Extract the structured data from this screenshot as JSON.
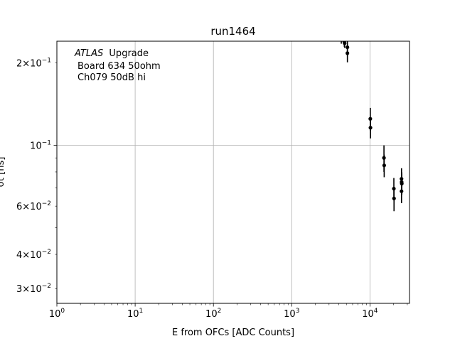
{
  "chart_data": {
    "type": "scatter",
    "title": "run1464",
    "xlabel": "E from OFCs [ADC Counts]",
    "ylabel": "σt [ns]",
    "xscale": "log",
    "yscale": "log",
    "xlim": [
      1,
      32000
    ],
    "ylim": [
      0.0265,
      0.24
    ],
    "grid": true,
    "x_ticks": [
      {
        "value": 1,
        "base": "10",
        "exp": "0"
      },
      {
        "value": 10,
        "base": "10",
        "exp": "1"
      },
      {
        "value": 100,
        "base": "10",
        "exp": "2"
      },
      {
        "value": 1000,
        "base": "10",
        "exp": "3"
      },
      {
        "value": 10000,
        "base": "10",
        "exp": "4"
      }
    ],
    "y_ticks": [
      {
        "value": 0.2,
        "mant": "2",
        "exp": "−1"
      },
      {
        "value": 0.1,
        "mant": "",
        "exp": "−1"
      },
      {
        "value": 0.06,
        "mant": "6",
        "exp": "−2"
      },
      {
        "value": 0.04,
        "mant": "4",
        "exp": "−2"
      },
      {
        "value": 0.03,
        "mant": "3",
        "exp": "−2"
      }
    ],
    "annotation": {
      "atlas": "ATLAS",
      "line1_rest": "Upgrade",
      "line2": "Board 634 50ohm",
      "line3": "Ch079 50dB hi"
    },
    "points": [
      {
        "x": 4300,
        "y": 0.245,
        "err": 0.01
      },
      {
        "x": 4700,
        "y": 0.239,
        "err": 0.01
      },
      {
        "x": 4750,
        "y": 0.236,
        "err": 0.009
      },
      {
        "x": 5150,
        "y": 0.228,
        "err": 0.012
      },
      {
        "x": 5150,
        "y": 0.217,
        "err": 0.016
      },
      {
        "x": 10100,
        "y": 0.125,
        "err": 0.012
      },
      {
        "x": 10150,
        "y": 0.116,
        "err": 0.01
      },
      {
        "x": 15100,
        "y": 0.09,
        "err": 0.01
      },
      {
        "x": 15200,
        "y": 0.0845,
        "err": 0.008
      },
      {
        "x": 20200,
        "y": 0.0695,
        "err": 0.0065
      },
      {
        "x": 20300,
        "y": 0.064,
        "err": 0.0065
      },
      {
        "x": 25300,
        "y": 0.0755,
        "err": 0.007
      },
      {
        "x": 25400,
        "y": 0.0735,
        "err": 0.0065
      },
      {
        "x": 25500,
        "y": 0.0725,
        "err": 0.0065
      },
      {
        "x": 25300,
        "y": 0.068,
        "err": 0.0065
      }
    ]
  }
}
